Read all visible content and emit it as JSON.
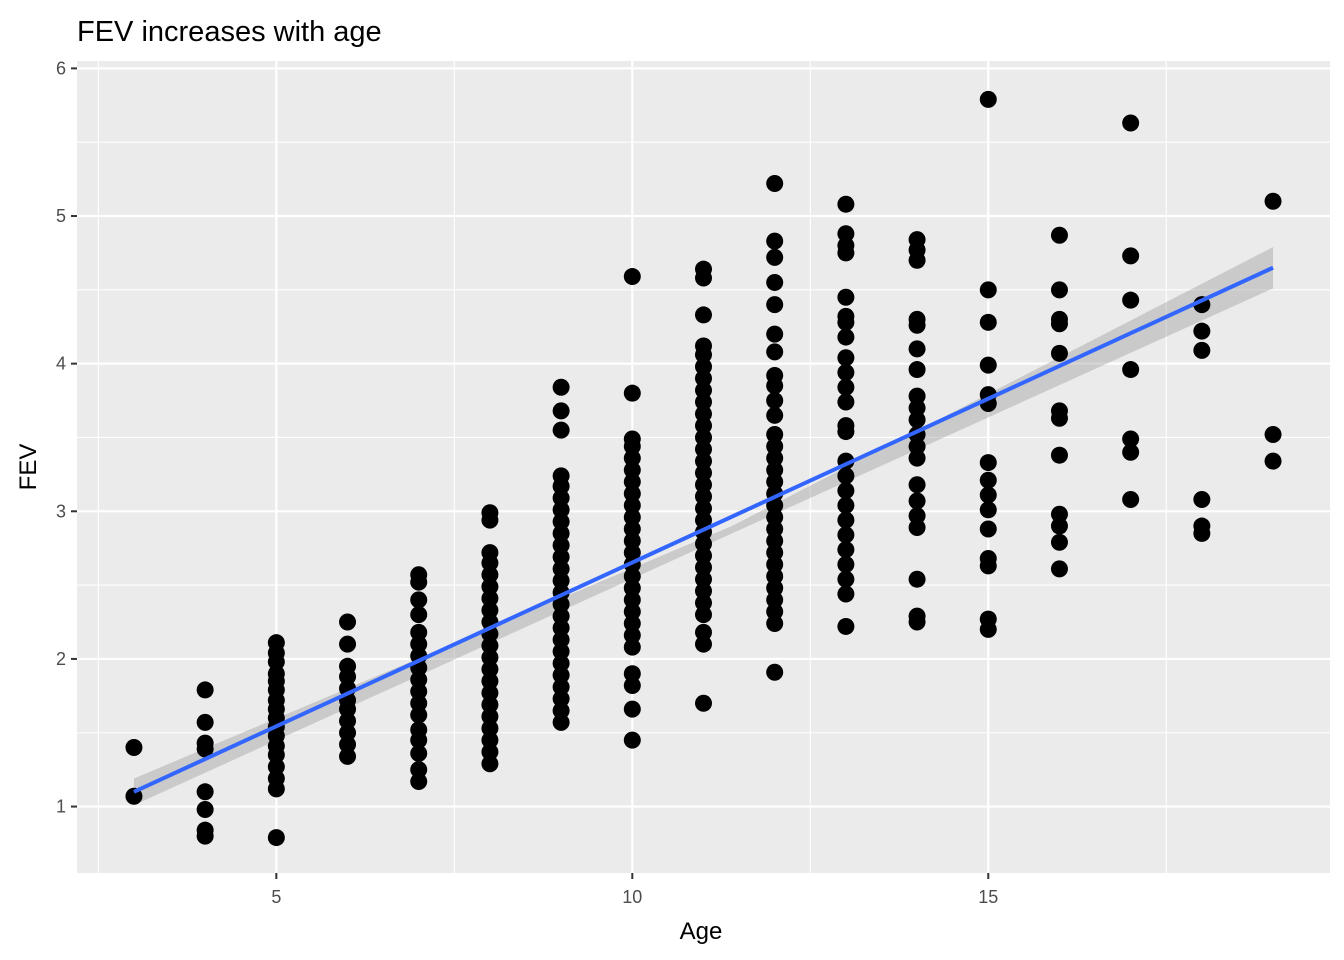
{
  "chart_data": {
    "type": "scatter",
    "title": "FEV increases with age",
    "xlabel": "Age",
    "ylabel": "FEV",
    "xlim": [
      2.2,
      19.8
    ],
    "ylim": [
      0.55,
      6.05
    ],
    "x_ticks": [
      5,
      10,
      15
    ],
    "x_tick_labels": [
      "5",
      "10",
      "15"
    ],
    "y_ticks": [
      1,
      2,
      3,
      4,
      5,
      6
    ],
    "y_tick_labels": [
      "1",
      "2",
      "3",
      "4",
      "5",
      "6"
    ],
    "grid": true,
    "legend": "none",
    "colors": {
      "panel": "#ebebeb",
      "grid": "#ffffff",
      "points": "#000000",
      "fit_line": "#3366ff",
      "ci_band": "#999999"
    },
    "points": [
      [
        3,
        1.07
      ],
      [
        3,
        1.4
      ],
      [
        4,
        0.8
      ],
      [
        4,
        0.84
      ],
      [
        4,
        0.98
      ],
      [
        4,
        1.1
      ],
      [
        4,
        1.39
      ],
      [
        4,
        1.43
      ],
      [
        4,
        1.57
      ],
      [
        4,
        1.79
      ],
      [
        5,
        0.79
      ],
      [
        5,
        1.12
      ],
      [
        5,
        1.19
      ],
      [
        5,
        1.27
      ],
      [
        5,
        1.35
      ],
      [
        5,
        1.41
      ],
      [
        5,
        1.48
      ],
      [
        5,
        1.54
      ],
      [
        5,
        1.6
      ],
      [
        5,
        1.66
      ],
      [
        5,
        1.72
      ],
      [
        5,
        1.79
      ],
      [
        5,
        1.85
      ],
      [
        5,
        1.9
      ],
      [
        5,
        1.98
      ],
      [
        5,
        2.04
      ],
      [
        5,
        2.11
      ],
      [
        6,
        1.34
      ],
      [
        6,
        1.42
      ],
      [
        6,
        1.5
      ],
      [
        6,
        1.58
      ],
      [
        6,
        1.66
      ],
      [
        6,
        1.72
      ],
      [
        6,
        1.8
      ],
      [
        6,
        1.88
      ],
      [
        6,
        1.95
      ],
      [
        6,
        2.1
      ],
      [
        6,
        2.25
      ],
      [
        7,
        1.17
      ],
      [
        7,
        1.25
      ],
      [
        7,
        1.36
      ],
      [
        7,
        1.45
      ],
      [
        7,
        1.52
      ],
      [
        7,
        1.62
      ],
      [
        7,
        1.7
      ],
      [
        7,
        1.78
      ],
      [
        7,
        1.86
      ],
      [
        7,
        1.94
      ],
      [
        7,
        2.02
      ],
      [
        7,
        2.1
      ],
      [
        7,
        2.18
      ],
      [
        7,
        2.3
      ],
      [
        7,
        2.4
      ],
      [
        7,
        2.52
      ],
      [
        7,
        2.57
      ],
      [
        8,
        1.29
      ],
      [
        8,
        1.37
      ],
      [
        8,
        1.45
      ],
      [
        8,
        1.53
      ],
      [
        8,
        1.61
      ],
      [
        8,
        1.69
      ],
      [
        8,
        1.77
      ],
      [
        8,
        1.85
      ],
      [
        8,
        1.93
      ],
      [
        8,
        2.01
      ],
      [
        8,
        2.09
      ],
      [
        8,
        2.17
      ],
      [
        8,
        2.25
      ],
      [
        8,
        2.33
      ],
      [
        8,
        2.41
      ],
      [
        8,
        2.49
      ],
      [
        8,
        2.57
      ],
      [
        8,
        2.65
      ],
      [
        8,
        2.72
      ],
      [
        8,
        2.94
      ],
      [
        8,
        2.99
      ],
      [
        9,
        1.57
      ],
      [
        9,
        1.65
      ],
      [
        9,
        1.73
      ],
      [
        9,
        1.81
      ],
      [
        9,
        1.89
      ],
      [
        9,
        1.97
      ],
      [
        9,
        2.05
      ],
      [
        9,
        2.13
      ],
      [
        9,
        2.21
      ],
      [
        9,
        2.29
      ],
      [
        9,
        2.37
      ],
      [
        9,
        2.45
      ],
      [
        9,
        2.53
      ],
      [
        9,
        2.61
      ],
      [
        9,
        2.69
      ],
      [
        9,
        2.77
      ],
      [
        9,
        2.85
      ],
      [
        9,
        2.93
      ],
      [
        9,
        3.01
      ],
      [
        9,
        3.09
      ],
      [
        9,
        3.17
      ],
      [
        9,
        3.24
      ],
      [
        9,
        3.55
      ],
      [
        9,
        3.68
      ],
      [
        9,
        3.84
      ],
      [
        10,
        1.45
      ],
      [
        10,
        1.66
      ],
      [
        10,
        1.82
      ],
      [
        10,
        1.9
      ],
      [
        10,
        2.08
      ],
      [
        10,
        2.16
      ],
      [
        10,
        2.24
      ],
      [
        10,
        2.32
      ],
      [
        10,
        2.4
      ],
      [
        10,
        2.48
      ],
      [
        10,
        2.56
      ],
      [
        10,
        2.64
      ],
      [
        10,
        2.72
      ],
      [
        10,
        2.8
      ],
      [
        10,
        2.88
      ],
      [
        10,
        2.96
      ],
      [
        10,
        3.04
      ],
      [
        10,
        3.12
      ],
      [
        10,
        3.2
      ],
      [
        10,
        3.28
      ],
      [
        10,
        3.36
      ],
      [
        10,
        3.44
      ],
      [
        10,
        3.49
      ],
      [
        10,
        3.8
      ],
      [
        10,
        4.59
      ],
      [
        11,
        1.7
      ],
      [
        11,
        2.1
      ],
      [
        11,
        2.18
      ],
      [
        11,
        2.3
      ],
      [
        11,
        2.38
      ],
      [
        11,
        2.46
      ],
      [
        11,
        2.54
      ],
      [
        11,
        2.62
      ],
      [
        11,
        2.7
      ],
      [
        11,
        2.78
      ],
      [
        11,
        2.86
      ],
      [
        11,
        2.94
      ],
      [
        11,
        3.02
      ],
      [
        11,
        3.1
      ],
      [
        11,
        3.18
      ],
      [
        11,
        3.26
      ],
      [
        11,
        3.34
      ],
      [
        11,
        3.42
      ],
      [
        11,
        3.5
      ],
      [
        11,
        3.58
      ],
      [
        11,
        3.66
      ],
      [
        11,
        3.74
      ],
      [
        11,
        3.82
      ],
      [
        11,
        3.9
      ],
      [
        11,
        3.98
      ],
      [
        11,
        4.06
      ],
      [
        11,
        4.12
      ],
      [
        11,
        4.33
      ],
      [
        11,
        4.58
      ],
      [
        11,
        4.64
      ],
      [
        12,
        1.91
      ],
      [
        12,
        2.24
      ],
      [
        12,
        2.32
      ],
      [
        12,
        2.4
      ],
      [
        12,
        2.48
      ],
      [
        12,
        2.56
      ],
      [
        12,
        2.64
      ],
      [
        12,
        2.72
      ],
      [
        12,
        2.8
      ],
      [
        12,
        2.88
      ],
      [
        12,
        2.96
      ],
      [
        12,
        3.04
      ],
      [
        12,
        3.12
      ],
      [
        12,
        3.2
      ],
      [
        12,
        3.28
      ],
      [
        12,
        3.36
      ],
      [
        12,
        3.44
      ],
      [
        12,
        3.52
      ],
      [
        12,
        3.65
      ],
      [
        12,
        3.75
      ],
      [
        12,
        3.85
      ],
      [
        12,
        3.92
      ],
      [
        12,
        4.08
      ],
      [
        12,
        4.2
      ],
      [
        12,
        4.4
      ],
      [
        12,
        4.55
      ],
      [
        12,
        4.72
      ],
      [
        12,
        4.83
      ],
      [
        12,
        5.22
      ],
      [
        13,
        2.22
      ],
      [
        13,
        2.44
      ],
      [
        13,
        2.54
      ],
      [
        13,
        2.64
      ],
      [
        13,
        2.74
      ],
      [
        13,
        2.84
      ],
      [
        13,
        2.94
      ],
      [
        13,
        3.04
      ],
      [
        13,
        3.14
      ],
      [
        13,
        3.24
      ],
      [
        13,
        3.34
      ],
      [
        13,
        3.54
      ],
      [
        13,
        3.58
      ],
      [
        13,
        3.74
      ],
      [
        13,
        3.84
      ],
      [
        13,
        3.94
      ],
      [
        13,
        4.04
      ],
      [
        13,
        4.18
      ],
      [
        13,
        4.28
      ],
      [
        13,
        4.32
      ],
      [
        13,
        4.45
      ],
      [
        13,
        4.75
      ],
      [
        13,
        4.8
      ],
      [
        13,
        4.88
      ],
      [
        13,
        5.08
      ],
      [
        14,
        2.25
      ],
      [
        14,
        2.29
      ],
      [
        14,
        2.54
      ],
      [
        14,
        2.89
      ],
      [
        14,
        2.97
      ],
      [
        14,
        3.07
      ],
      [
        14,
        3.18
      ],
      [
        14,
        3.36
      ],
      [
        14,
        3.44
      ],
      [
        14,
        3.52
      ],
      [
        14,
        3.62
      ],
      [
        14,
        3.7
      ],
      [
        14,
        3.78
      ],
      [
        14,
        3.96
      ],
      [
        14,
        4.1
      ],
      [
        14,
        4.26
      ],
      [
        14,
        4.3
      ],
      [
        14,
        4.7
      ],
      [
        14,
        4.77
      ],
      [
        14,
        4.84
      ],
      [
        15,
        2.2
      ],
      [
        15,
        2.27
      ],
      [
        15,
        2.63
      ],
      [
        15,
        2.68
      ],
      [
        15,
        2.88
      ],
      [
        15,
        3.01
      ],
      [
        15,
        3.11
      ],
      [
        15,
        3.21
      ],
      [
        15,
        3.33
      ],
      [
        15,
        3.73
      ],
      [
        15,
        3.79
      ],
      [
        15,
        3.99
      ],
      [
        15,
        4.28
      ],
      [
        15,
        4.5
      ],
      [
        15,
        5.79
      ],
      [
        16,
        2.61
      ],
      [
        16,
        2.79
      ],
      [
        16,
        2.9
      ],
      [
        16,
        2.98
      ],
      [
        16,
        3.38
      ],
      [
        16,
        3.63
      ],
      [
        16,
        3.68
      ],
      [
        16,
        4.07
      ],
      [
        16,
        4.27
      ],
      [
        16,
        4.3
      ],
      [
        16,
        4.5
      ],
      [
        16,
        4.87
      ],
      [
        17,
        3.08
      ],
      [
        17,
        3.4
      ],
      [
        17,
        3.49
      ],
      [
        17,
        3.96
      ],
      [
        17,
        4.43
      ],
      [
        17,
        4.73
      ],
      [
        17,
        5.63
      ],
      [
        18,
        2.85
      ],
      [
        18,
        2.9
      ],
      [
        18,
        3.08
      ],
      [
        18,
        4.09
      ],
      [
        18,
        4.22
      ],
      [
        18,
        4.4
      ],
      [
        19,
        3.34
      ],
      [
        19,
        3.52
      ],
      [
        19,
        5.1
      ]
    ],
    "fit": {
      "method": "linear",
      "x": [
        3,
        19
      ],
      "y": [
        1.1,
        4.65
      ],
      "ci_lower": [
        1.01,
        4.51
      ],
      "ci_upper": [
        1.19,
        4.79
      ],
      "ci_mid_x": 11.4,
      "ci_mid_lower": [
        2.85
      ],
      "ci_mid_upper": [
        2.9
      ]
    }
  }
}
